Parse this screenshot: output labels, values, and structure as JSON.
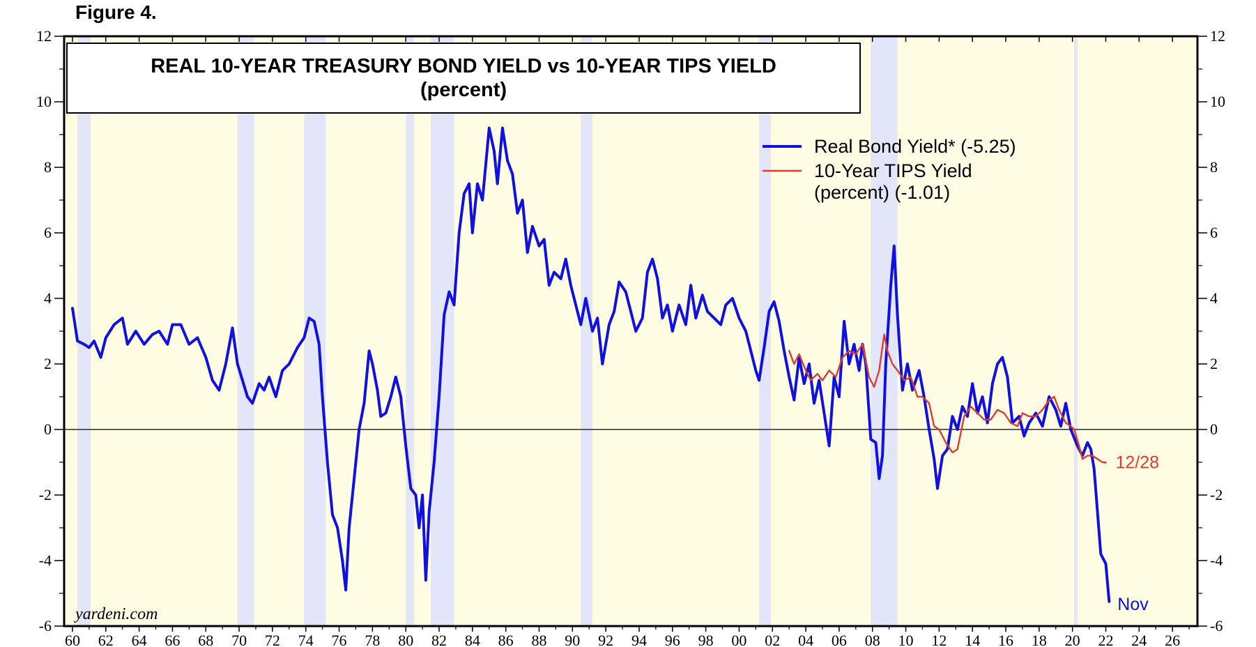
{
  "figure_label": "Figure 4.",
  "source": "yardeni.com",
  "colors": {
    "background": "#fefde4",
    "recession": "#e3e5f8",
    "real_bond_yield": "#1010e0",
    "tips_yield": "#e03c2c",
    "axis": "#000000"
  },
  "chart_data": {
    "type": "line",
    "title": "REAL 10-YEAR TREASURY BOND YIELD vs 10-YEAR TIPS YIELD",
    "subtitle": "(percent)",
    "xlim": [
      1959.5,
      2027.5
    ],
    "ylim": [
      -6,
      12
    ],
    "y_ticks": [
      -6,
      -4,
      -2,
      0,
      2,
      4,
      6,
      8,
      10,
      12
    ],
    "y_tick_labels": [
      "-6",
      "-4",
      "-2",
      "0",
      "2",
      "4",
      "6",
      "8",
      "10",
      "12"
    ],
    "x_ticks": [
      1960,
      1962,
      1964,
      1966,
      1968,
      1970,
      1972,
      1974,
      1976,
      1978,
      1980,
      1982,
      1984,
      1986,
      1988,
      1990,
      1992,
      1994,
      1996,
      1998,
      2000,
      2002,
      2004,
      2006,
      2008,
      2010,
      2012,
      2014,
      2016,
      2018,
      2020,
      2022,
      2024,
      2026
    ],
    "x_tick_labels": [
      "60",
      "62",
      "64",
      "66",
      "68",
      "70",
      "72",
      "74",
      "76",
      "78",
      "80",
      "82",
      "84",
      "86",
      "88",
      "90",
      "92",
      "94",
      "96",
      "98",
      "00",
      "02",
      "04",
      "06",
      "08",
      "10",
      "12",
      "14",
      "16",
      "18",
      "20",
      "22",
      "24",
      "26"
    ],
    "legend_position": "top-right",
    "recessions": [
      [
        1960.3,
        1961.1
      ],
      [
        1969.9,
        1970.9
      ],
      [
        1973.9,
        1975.2
      ],
      [
        1980.0,
        1980.5
      ],
      [
        1981.5,
        1982.9
      ],
      [
        1990.5,
        1991.2
      ],
      [
        2001.2,
        2001.9
      ],
      [
        2007.9,
        2009.5
      ],
      [
        2020.1,
        2020.3
      ]
    ],
    "series": [
      {
        "name": "Real Bond Yield* (-5.25)",
        "end_label": "Nov",
        "points": [
          [
            1960.0,
            3.7
          ],
          [
            1960.3,
            2.7
          ],
          [
            1960.7,
            2.6
          ],
          [
            1961.0,
            2.5
          ],
          [
            1961.3,
            2.7
          ],
          [
            1961.7,
            2.2
          ],
          [
            1962.0,
            2.8
          ],
          [
            1962.5,
            3.2
          ],
          [
            1963.0,
            3.4
          ],
          [
            1963.3,
            2.6
          ],
          [
            1963.8,
            3.0
          ],
          [
            1964.3,
            2.6
          ],
          [
            1964.8,
            2.9
          ],
          [
            1965.2,
            3.0
          ],
          [
            1965.7,
            2.6
          ],
          [
            1966.0,
            3.2
          ],
          [
            1966.5,
            3.2
          ],
          [
            1967.0,
            2.6
          ],
          [
            1967.5,
            2.8
          ],
          [
            1968.0,
            2.2
          ],
          [
            1968.4,
            1.5
          ],
          [
            1968.8,
            1.2
          ],
          [
            1969.2,
            2.0
          ],
          [
            1969.6,
            3.1
          ],
          [
            1969.9,
            2.0
          ],
          [
            1970.2,
            1.5
          ],
          [
            1970.5,
            1.0
          ],
          [
            1970.8,
            0.8
          ],
          [
            1971.2,
            1.4
          ],
          [
            1971.5,
            1.2
          ],
          [
            1971.8,
            1.6
          ],
          [
            1972.2,
            1.0
          ],
          [
            1972.6,
            1.8
          ],
          [
            1973.0,
            2.0
          ],
          [
            1973.5,
            2.5
          ],
          [
            1973.9,
            2.8
          ],
          [
            1974.2,
            3.4
          ],
          [
            1974.5,
            3.3
          ],
          [
            1974.8,
            2.6
          ],
          [
            1975.0,
            1.0
          ],
          [
            1975.3,
            -1.0
          ],
          [
            1975.6,
            -2.6
          ],
          [
            1975.9,
            -3.0
          ],
          [
            1976.2,
            -4.0
          ],
          [
            1976.4,
            -4.9
          ],
          [
            1976.6,
            -3.0
          ],
          [
            1976.9,
            -1.5
          ],
          [
            1977.2,
            0.0
          ],
          [
            1977.5,
            0.8
          ],
          [
            1977.8,
            2.4
          ],
          [
            1978.0,
            2.0
          ],
          [
            1978.3,
            1.2
          ],
          [
            1978.5,
            0.4
          ],
          [
            1978.8,
            0.5
          ],
          [
            1979.1,
            1.0
          ],
          [
            1979.4,
            1.6
          ],
          [
            1979.7,
            1.0
          ],
          [
            1980.0,
            -0.5
          ],
          [
            1980.3,
            -1.8
          ],
          [
            1980.6,
            -2.0
          ],
          [
            1980.8,
            -3.0
          ],
          [
            1981.0,
            -2.0
          ],
          [
            1981.2,
            -4.6
          ],
          [
            1981.4,
            -2.5
          ],
          [
            1981.7,
            -1.0
          ],
          [
            1982.0,
            1.0
          ],
          [
            1982.3,
            3.5
          ],
          [
            1982.6,
            4.2
          ],
          [
            1982.9,
            3.8
          ],
          [
            1983.2,
            6.0
          ],
          [
            1983.5,
            7.2
          ],
          [
            1983.8,
            7.5
          ],
          [
            1984.0,
            6.0
          ],
          [
            1984.3,
            7.5
          ],
          [
            1984.6,
            7.0
          ],
          [
            1985.0,
            9.2
          ],
          [
            1985.3,
            8.5
          ],
          [
            1985.5,
            7.5
          ],
          [
            1985.8,
            9.2
          ],
          [
            1986.1,
            8.2
          ],
          [
            1986.4,
            7.8
          ],
          [
            1986.7,
            6.6
          ],
          [
            1987.0,
            7.0
          ],
          [
            1987.3,
            5.4
          ],
          [
            1987.6,
            6.2
          ],
          [
            1988.0,
            5.6
          ],
          [
            1988.3,
            5.8
          ],
          [
            1988.6,
            4.4
          ],
          [
            1988.9,
            4.8
          ],
          [
            1989.3,
            4.6
          ],
          [
            1989.6,
            5.2
          ],
          [
            1989.9,
            4.4
          ],
          [
            1990.2,
            3.8
          ],
          [
            1990.5,
            3.2
          ],
          [
            1990.8,
            4.0
          ],
          [
            1991.2,
            3.0
          ],
          [
            1991.5,
            3.4
          ],
          [
            1991.8,
            2.0
          ],
          [
            1992.2,
            3.2
          ],
          [
            1992.5,
            3.6
          ],
          [
            1992.8,
            4.5
          ],
          [
            1993.2,
            4.2
          ],
          [
            1993.5,
            3.6
          ],
          [
            1993.8,
            3.0
          ],
          [
            1994.2,
            3.4
          ],
          [
            1994.5,
            4.8
          ],
          [
            1994.8,
            5.2
          ],
          [
            1995.1,
            4.6
          ],
          [
            1995.4,
            3.4
          ],
          [
            1995.7,
            3.8
          ],
          [
            1996.0,
            3.0
          ],
          [
            1996.4,
            3.8
          ],
          [
            1996.8,
            3.2
          ],
          [
            1997.1,
            4.4
          ],
          [
            1997.4,
            3.4
          ],
          [
            1997.8,
            4.1
          ],
          [
            1998.1,
            3.6
          ],
          [
            1998.5,
            3.4
          ],
          [
            1998.9,
            3.2
          ],
          [
            1999.2,
            3.8
          ],
          [
            1999.6,
            4.0
          ],
          [
            2000.0,
            3.4
          ],
          [
            2000.4,
            3.0
          ],
          [
            2000.8,
            2.2
          ],
          [
            2001.0,
            1.8
          ],
          [
            2001.2,
            1.5
          ],
          [
            2001.5,
            2.5
          ],
          [
            2001.8,
            3.6
          ],
          [
            2002.1,
            3.9
          ],
          [
            2002.4,
            3.3
          ],
          [
            2002.7,
            2.4
          ],
          [
            2003.0,
            1.6
          ],
          [
            2003.3,
            0.9
          ],
          [
            2003.6,
            2.2
          ],
          [
            2003.9,
            1.4
          ],
          [
            2004.2,
            2.0
          ],
          [
            2004.5,
            0.8
          ],
          [
            2004.8,
            1.5
          ],
          [
            2005.1,
            0.5
          ],
          [
            2005.4,
            -0.5
          ],
          [
            2005.7,
            1.6
          ],
          [
            2006.0,
            1.0
          ],
          [
            2006.3,
            3.3
          ],
          [
            2006.6,
            2.0
          ],
          [
            2006.9,
            2.6
          ],
          [
            2007.2,
            1.8
          ],
          [
            2007.4,
            2.6
          ],
          [
            2007.6,
            2.0
          ],
          [
            2007.9,
            -0.3
          ],
          [
            2008.2,
            -0.4
          ],
          [
            2008.4,
            -1.5
          ],
          [
            2008.6,
            -0.8
          ],
          [
            2008.8,
            2.0
          ],
          [
            2009.1,
            4.4
          ],
          [
            2009.3,
            5.6
          ],
          [
            2009.5,
            3.5
          ],
          [
            2009.8,
            1.2
          ],
          [
            2010.1,
            2.0
          ],
          [
            2010.4,
            1.2
          ],
          [
            2010.8,
            1.8
          ],
          [
            2011.1,
            1.0
          ],
          [
            2011.4,
            0.0
          ],
          [
            2011.7,
            -0.9
          ],
          [
            2011.9,
            -1.8
          ],
          [
            2012.2,
            -0.8
          ],
          [
            2012.5,
            -0.6
          ],
          [
            2012.8,
            0.4
          ],
          [
            2013.1,
            0.0
          ],
          [
            2013.4,
            0.7
          ],
          [
            2013.7,
            0.4
          ],
          [
            2014.0,
            1.4
          ],
          [
            2014.3,
            0.5
          ],
          [
            2014.6,
            1.0
          ],
          [
            2014.9,
            0.2
          ],
          [
            2015.2,
            1.4
          ],
          [
            2015.5,
            2.0
          ],
          [
            2015.8,
            2.2
          ],
          [
            2016.1,
            1.6
          ],
          [
            2016.4,
            0.2
          ],
          [
            2016.8,
            0.4
          ],
          [
            2017.1,
            -0.2
          ],
          [
            2017.4,
            0.2
          ],
          [
            2017.8,
            0.5
          ],
          [
            2018.2,
            0.1
          ],
          [
            2018.6,
            1.0
          ],
          [
            2019.0,
            0.6
          ],
          [
            2019.3,
            0.1
          ],
          [
            2019.6,
            0.8
          ],
          [
            2019.9,
            0.0
          ],
          [
            2020.3,
            -0.5
          ],
          [
            2020.6,
            -0.8
          ],
          [
            2020.9,
            -0.4
          ],
          [
            2021.1,
            -0.6
          ],
          [
            2021.3,
            -1.2
          ],
          [
            2021.5,
            -2.5
          ],
          [
            2021.7,
            -3.8
          ],
          [
            2021.9,
            -4.0
          ],
          [
            2022.0,
            -4.1
          ],
          [
            2022.2,
            -5.25
          ]
        ]
      },
      {
        "name": "10-Year TIPS Yield (percent) (-1.01)",
        "end_label": "12/28",
        "points": [
          [
            2003.0,
            2.4
          ],
          [
            2003.3,
            2.0
          ],
          [
            2003.6,
            2.3
          ],
          [
            2004.0,
            1.8
          ],
          [
            2004.3,
            1.5
          ],
          [
            2004.7,
            1.7
          ],
          [
            2005.0,
            1.5
          ],
          [
            2005.4,
            1.8
          ],
          [
            2005.8,
            1.6
          ],
          [
            2006.2,
            2.2
          ],
          [
            2006.6,
            2.4
          ],
          [
            2007.0,
            2.3
          ],
          [
            2007.4,
            2.6
          ],
          [
            2007.8,
            1.6
          ],
          [
            2008.1,
            1.3
          ],
          [
            2008.4,
            1.8
          ],
          [
            2008.7,
            2.9
          ],
          [
            2008.9,
            2.4
          ],
          [
            2009.2,
            2.0
          ],
          [
            2009.5,
            1.8
          ],
          [
            2009.9,
            1.5
          ],
          [
            2010.3,
            1.6
          ],
          [
            2010.7,
            1.0
          ],
          [
            2011.0,
            1.0
          ],
          [
            2011.4,
            0.8
          ],
          [
            2011.7,
            0.1
          ],
          [
            2012.0,
            0.0
          ],
          [
            2012.4,
            -0.4
          ],
          [
            2012.8,
            -0.7
          ],
          [
            2013.1,
            -0.6
          ],
          [
            2013.5,
            0.4
          ],
          [
            2013.9,
            0.7
          ],
          [
            2014.3,
            0.5
          ],
          [
            2014.7,
            0.3
          ],
          [
            2015.1,
            0.3
          ],
          [
            2015.5,
            0.6
          ],
          [
            2015.9,
            0.5
          ],
          [
            2016.3,
            0.2
          ],
          [
            2016.7,
            0.1
          ],
          [
            2017.0,
            0.5
          ],
          [
            2017.4,
            0.4
          ],
          [
            2017.8,
            0.4
          ],
          [
            2018.2,
            0.6
          ],
          [
            2018.6,
            0.9
          ],
          [
            2018.9,
            1.0
          ],
          [
            2019.2,
            0.6
          ],
          [
            2019.6,
            0.2
          ],
          [
            2019.9,
            0.1
          ],
          [
            2020.1,
            0.0
          ],
          [
            2020.4,
            -0.5
          ],
          [
            2020.6,
            -0.9
          ],
          [
            2020.9,
            -0.8
          ],
          [
            2021.2,
            -0.8
          ],
          [
            2021.5,
            -0.9
          ],
          [
            2021.8,
            -1.0
          ],
          [
            2022.0,
            -1.01
          ]
        ]
      }
    ]
  }
}
